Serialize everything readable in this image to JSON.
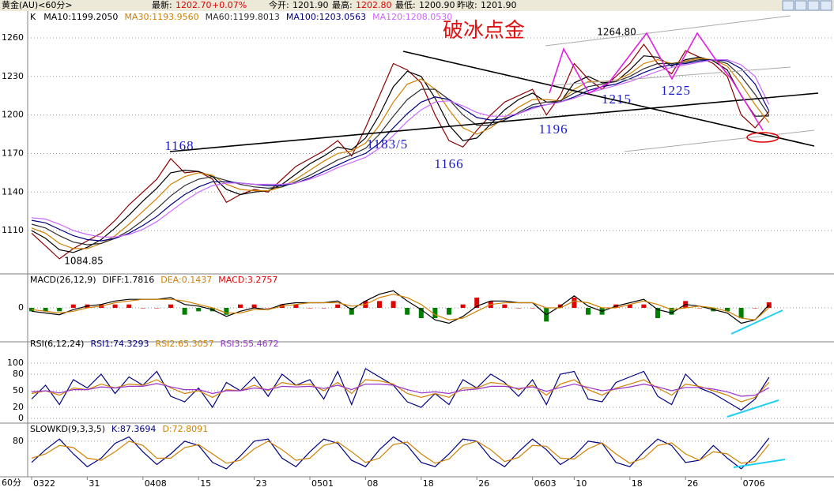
{
  "header": {
    "instrument": "黄金(AU)<60分>",
    "last_label": "最新:",
    "last": "1202.70",
    "change": "+0.07%",
    "open_label": "今开:",
    "open": "1201.90",
    "high_label": "最高:",
    "high": "1202.80",
    "low_label": "最低:",
    "low": "1200.90",
    "prev_label": "昨收:",
    "prev": "1201.90"
  },
  "footer": {
    "period": "60分"
  },
  "chart_data": [
    {
      "type": "line",
      "title": "破冰点金",
      "categories": [
        "0322",
        null,
        null,
        null,
        "31",
        null,
        null,
        null,
        "0408",
        null,
        null,
        null,
        "15",
        null,
        null,
        null,
        "23",
        null,
        null,
        null,
        "0501",
        null,
        null,
        null,
        "08",
        null,
        null,
        null,
        "18",
        null,
        null,
        null,
        "26",
        null,
        null,
        null,
        "0603",
        null,
        null,
        "10",
        null,
        null,
        null,
        "18",
        null,
        null,
        null,
        "26",
        null,
        null,
        null,
        "0706",
        null,
        null
      ],
      "series": [
        {
          "name": "K",
          "color": "#8b0000",
          "values": [
            1108,
            1098,
            1088,
            1096,
            1102,
            1108,
            1118,
            1130,
            1140,
            1150,
            1166,
            1155,
            1156,
            1150,
            1132,
            1138,
            1142,
            1140,
            1150,
            1160,
            1166,
            1172,
            1180,
            1168,
            1190,
            1215,
            1240,
            1235,
            1225,
            1200,
            1180,
            1175,
            1188,
            1200,
            1210,
            1215,
            1220,
            1200,
            1215,
            1240,
            1228,
            1220,
            1230,
            1240,
            1255,
            1240,
            1232,
            1250,
            1245,
            1240,
            1230,
            1200,
            1190,
            1202.7
          ]
        },
        {
          "name": "MA10:1199.2050",
          "color": "#000000",
          "values": [
            1110,
            1104,
            1095,
            1093,
            1097,
            1103,
            1112,
            1122,
            1133,
            1143,
            1155,
            1157,
            1156,
            1152,
            1142,
            1138,
            1140,
            1141,
            1146,
            1154,
            1162,
            1168,
            1175,
            1173,
            1182,
            1200,
            1222,
            1234,
            1230,
            1213,
            1192,
            1180,
            1182,
            1193,
            1204,
            1212,
            1217,
            1210,
            1210,
            1225,
            1230,
            1225,
            1226,
            1235,
            1246,
            1245,
            1238,
            1243,
            1245,
            1242,
            1235,
            1215,
            1199,
            1199.2
          ]
        },
        {
          "name": "MA30:1193.9560",
          "color": "#d08000",
          "values": [
            1112,
            1108,
            1100,
            1096,
            1096,
            1100,
            1106,
            1115,
            1125,
            1135,
            1146,
            1152,
            1155,
            1153,
            1146,
            1142,
            1141,
            1141,
            1144,
            1150,
            1157,
            1164,
            1170,
            1172,
            1178,
            1192,
            1210,
            1224,
            1228,
            1220,
            1204,
            1190,
            1185,
            1190,
            1198,
            1206,
            1212,
            1212,
            1211,
            1220,
            1226,
            1226,
            1227,
            1232,
            1240,
            1243,
            1240,
            1242,
            1244,
            1243,
            1238,
            1224,
            1208,
            1194
          ]
        },
        {
          "name": "MA60:1199.8013",
          "color": "#303030",
          "values": [
            1115,
            1112,
            1106,
            1101,
            1099,
            1100,
            1104,
            1110,
            1118,
            1127,
            1137,
            1145,
            1150,
            1152,
            1149,
            1146,
            1144,
            1143,
            1144,
            1148,
            1153,
            1159,
            1165,
            1169,
            1174,
            1185,
            1199,
            1212,
            1220,
            1220,
            1212,
            1200,
            1192,
            1192,
            1196,
            1202,
            1208,
            1210,
            1211,
            1217,
            1222,
            1224,
            1226,
            1230,
            1236,
            1240,
            1240,
            1241,
            1243,
            1243,
            1240,
            1230,
            1216,
            1199.8
          ]
        },
        {
          "name": "MA100:1203.0563",
          "color": "#000080",
          "values": [
            1118,
            1116,
            1111,
            1106,
            1103,
            1102,
            1104,
            1108,
            1114,
            1121,
            1130,
            1138,
            1144,
            1148,
            1148,
            1147,
            1146,
            1145,
            1145,
            1147,
            1151,
            1156,
            1161,
            1166,
            1170,
            1178,
            1190,
            1201,
            1210,
            1214,
            1212,
            1205,
            1198,
            1196,
            1197,
            1201,
            1206,
            1208,
            1210,
            1214,
            1219,
            1222,
            1224,
            1228,
            1233,
            1237,
            1239,
            1240,
            1242,
            1243,
            1242,
            1236,
            1224,
            1203.1
          ]
        },
        {
          "name": "MA120:1208.0530",
          "color": "#cc66ff",
          "values": [
            1120,
            1119,
            1115,
            1110,
            1107,
            1105,
            1105,
            1107,
            1111,
            1117,
            1125,
            1133,
            1140,
            1145,
            1147,
            1147,
            1146,
            1146,
            1146,
            1147,
            1150,
            1154,
            1159,
            1163,
            1167,
            1174,
            1184,
            1195,
            1204,
            1210,
            1211,
            1207,
            1202,
            1199,
            1199,
            1201,
            1205,
            1208,
            1210,
            1213,
            1217,
            1220,
            1223,
            1226,
            1230,
            1234,
            1237,
            1239,
            1241,
            1243,
            1243,
            1239,
            1230,
            1208.1
          ]
        }
      ],
      "annotations": [
        "1264.80",
        "1168",
        "1183/5",
        "1166",
        "1196",
        "1215",
        "1225",
        "1084.85"
      ],
      "ylim": [
        1077.5,
        1278.4
      ],
      "yticks": [
        1110,
        1140,
        1170,
        1200,
        1230,
        1260
      ],
      "grid": true
    },
    {
      "type": "macd",
      "title": "MACD(26,12,9)",
      "series": [
        {
          "name": "DIFF:1.7816",
          "type": "line",
          "color": "#000000",
          "values": [
            -2,
            -3,
            -4,
            -1,
            1,
            2,
            4,
            5,
            5,
            5,
            6,
            2,
            1,
            -1,
            -5,
            -2,
            0,
            -1,
            2,
            3,
            3,
            3,
            4,
            -1,
            4,
            8,
            10,
            4,
            -1,
            -7,
            -9,
            -5,
            1,
            4,
            4,
            3,
            3,
            -4,
            1,
            7,
            1,
            -2,
            1,
            3,
            5,
            -1,
            -3,
            2,
            1,
            -1,
            -3,
            -9,
            -7,
            1.7816
          ]
        },
        {
          "name": "DEA:0.1437",
          "type": "line",
          "color": "#d08000",
          "values": [
            -1,
            -2,
            -3,
            -2,
            0,
            1,
            3,
            4,
            5,
            5,
            5,
            4,
            2,
            0,
            -3,
            -3,
            -1,
            -1,
            1,
            2,
            3,
            3,
            3,
            1,
            2,
            6,
            8,
            6,
            2,
            -4,
            -7,
            -6,
            -2,
            2,
            3,
            3,
            3,
            0,
            0,
            4,
            3,
            0,
            0,
            2,
            4,
            2,
            -1,
            0,
            1,
            0,
            -2,
            -6,
            -7,
            0.1437
          ]
        },
        {
          "name": "MACD:3.2757",
          "type": "bar",
          "color": "#e00000",
          "negative_color": "#008000",
          "values": [
            -2,
            -2,
            -2,
            2,
            2,
            2,
            2,
            2,
            0,
            0,
            2,
            -4,
            -2,
            -2,
            -4,
            2,
            2,
            0,
            2,
            2,
            0,
            0,
            2,
            -4,
            4,
            4,
            4,
            -4,
            -6,
            -6,
            -4,
            2,
            6,
            4,
            2,
            0,
            0,
            -8,
            2,
            6,
            -4,
            -4,
            2,
            2,
            2,
            -6,
            -4,
            4,
            0,
            -2,
            -2,
            -6,
            0,
            3.2757
          ]
        }
      ],
      "ylim": [
        -12,
        12
      ],
      "yticks": [
        0
      ],
      "grid": true
    },
    {
      "type": "line",
      "title": "RSI(6,12,24)",
      "series": [
        {
          "name": "RSI1:74.3293",
          "color": "#000080",
          "values": [
            35,
            60,
            25,
            70,
            55,
            80,
            45,
            75,
            60,
            85,
            40,
            30,
            55,
            20,
            65,
            50,
            75,
            40,
            80,
            60,
            70,
            35,
            85,
            25,
            90,
            75,
            60,
            30,
            20,
            45,
            25,
            70,
            55,
            80,
            65,
            40,
            70,
            25,
            80,
            85,
            35,
            30,
            65,
            75,
            85,
            40,
            25,
            80,
            55,
            45,
            30,
            15,
            35,
            74.3293
          ]
        },
        {
          "name": "RSI2:65.3057",
          "color": "#d08000",
          "values": [
            45,
            50,
            42,
            55,
            52,
            62,
            55,
            62,
            60,
            70,
            55,
            45,
            50,
            38,
            52,
            50,
            60,
            50,
            65,
            60,
            62,
            50,
            65,
            45,
            70,
            68,
            62,
            45,
            38,
            45,
            38,
            55,
            55,
            65,
            62,
            52,
            60,
            42,
            62,
            70,
            52,
            42,
            55,
            62,
            70,
            55,
            42,
            62,
            58,
            50,
            42,
            30,
            38,
            65.3057
          ]
        },
        {
          "name": "RSI3:55.4672",
          "color": "#9933cc",
          "values": [
            48,
            50,
            46,
            52,
            52,
            57,
            55,
            58,
            58,
            63,
            57,
            52,
            52,
            45,
            50,
            50,
            55,
            52,
            58,
            57,
            58,
            54,
            60,
            52,
            62,
            62,
            60,
            52,
            46,
            48,
            45,
            51,
            53,
            58,
            58,
            54,
            57,
            49,
            56,
            62,
            56,
            50,
            53,
            57,
            62,
            57,
            50,
            56,
            56,
            53,
            48,
            40,
            42,
            55.4672
          ]
        }
      ],
      "ylim": [
        0,
        100
      ],
      "yticks": [
        0,
        20,
        50,
        80,
        100
      ],
      "grid": true
    },
    {
      "type": "line",
      "title": "SLOWKD(9,3,3,5)",
      "series": [
        {
          "name": "K:87.3694",
          "color": "#000080",
          "values": [
            30,
            60,
            85,
            50,
            20,
            40,
            75,
            90,
            55,
            25,
            50,
            80,
            70,
            30,
            15,
            45,
            80,
            85,
            40,
            20,
            55,
            85,
            75,
            35,
            20,
            60,
            90,
            70,
            30,
            20,
            50,
            85,
            80,
            40,
            20,
            55,
            85,
            60,
            25,
            45,
            80,
            75,
            30,
            20,
            55,
            85,
            70,
            30,
            35,
            70,
            40,
            15,
            45,
            87.3694
          ]
        },
        {
          "name": "D:72.8091",
          "color": "#d08000",
          "values": [
            40,
            50,
            70,
            65,
            40,
            35,
            55,
            80,
            70,
            40,
            40,
            65,
            72,
            50,
            28,
            35,
            62,
            80,
            60,
            35,
            40,
            70,
            78,
            55,
            30,
            40,
            72,
            78,
            50,
            28,
            38,
            70,
            80,
            60,
            32,
            42,
            70,
            68,
            40,
            38,
            62,
            76,
            50,
            28,
            40,
            70,
            76,
            50,
            35,
            55,
            50,
            28,
            32,
            72.8091
          ]
        }
      ],
      "ylim": [
        0,
        115
      ],
      "yticks": [
        80
      ],
      "grid": true
    }
  ]
}
